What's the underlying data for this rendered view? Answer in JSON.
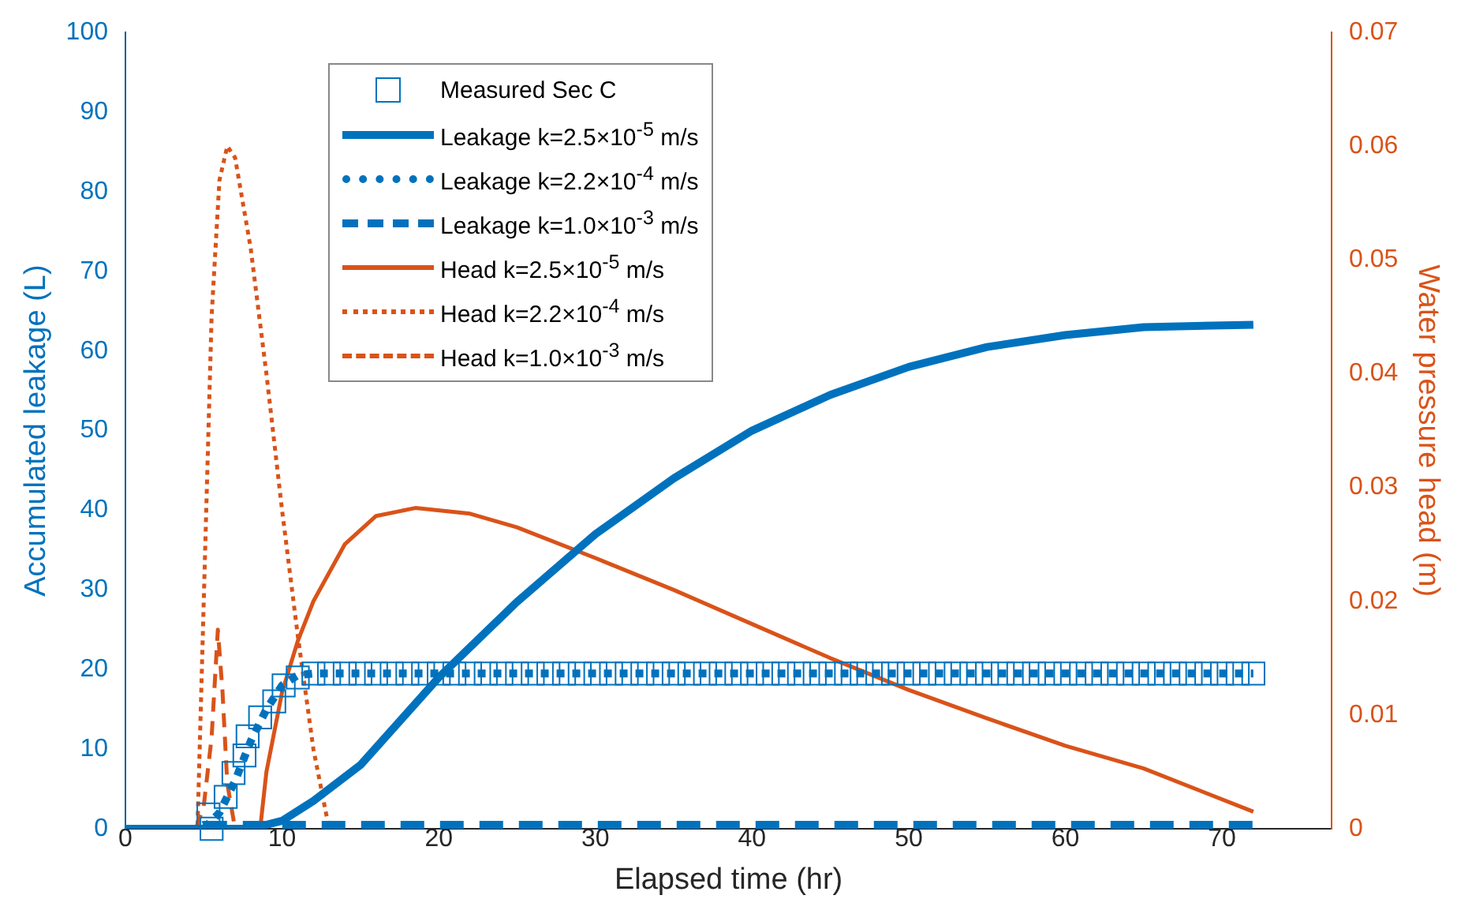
{
  "chart_data": {
    "type": "line",
    "xlabel": "Elapsed time (hr)",
    "ylabel": "Accumulated leakage (L)",
    "y2label": "Water pressure head (m)",
    "xlim": [
      0,
      77
    ],
    "xticks": [
      0,
      10,
      20,
      30,
      40,
      50,
      60,
      70
    ],
    "ylim": [
      0,
      100
    ],
    "yticks": [
      0,
      10,
      20,
      30,
      40,
      50,
      60,
      70,
      80,
      90,
      100
    ],
    "y2lim": [
      0,
      0.07
    ],
    "y2ticks": [
      0,
      0.01,
      0.02,
      0.03,
      0.04,
      0.05,
      0.06,
      0.07
    ],
    "grid": false,
    "legend": "top left",
    "series": [
      {
        "name": "Measured Sec C",
        "type": "scatter",
        "marker": "square",
        "color": "#0072bd",
        "x": [
          5.5,
          5.3,
          6.4,
          6.9,
          7.6,
          7.8,
          8.6,
          9.5,
          10.1,
          11,
          12,
          13,
          14,
          15,
          16,
          17,
          18,
          19,
          20,
          21,
          22,
          23,
          24,
          25,
          26,
          27,
          28,
          29,
          30,
          31,
          32,
          33,
          34,
          35,
          36,
          37,
          38,
          39,
          40,
          41,
          42,
          43,
          44,
          45,
          46,
          47,
          48,
          49,
          50,
          51,
          52,
          53,
          54,
          55,
          56,
          57,
          58,
          59,
          60,
          61,
          62,
          63,
          64,
          65,
          66,
          67,
          68,
          69,
          70,
          71,
          72
        ],
        "values": [
          0,
          1.8,
          4,
          7,
          9.2,
          11.6,
          14,
          16,
          18,
          19,
          19.5,
          19.5,
          19.5,
          19.5,
          19.5,
          19.5,
          19.5,
          19.5,
          19.5,
          19.5,
          19.5,
          19.5,
          19.5,
          19.5,
          19.5,
          19.5,
          19.5,
          19.5,
          19.5,
          19.5,
          19.5,
          19.5,
          19.5,
          19.5,
          19.5,
          19.5,
          19.5,
          19.5,
          19.5,
          19.5,
          19.5,
          19.5,
          19.5,
          19.5,
          19.5,
          19.5,
          19.5,
          19.5,
          19.5,
          19.5,
          19.5,
          19.5,
          19.5,
          19.5,
          19.5,
          19.5,
          19.5,
          19.5,
          19.5,
          19.5,
          19.5,
          19.5,
          19.5,
          19.5,
          19.5,
          19.5,
          19.5,
          19.5,
          19.5,
          19.5,
          19.5
        ]
      },
      {
        "name": "Leakage k=2.5×10$^{-5}$ m/s",
        "line_style": "solid",
        "color": "#0072bd",
        "x": [
          0,
          8,
          10,
          12,
          15,
          20,
          25,
          30,
          35,
          40,
          45,
          50,
          55,
          60,
          65,
          72
        ],
        "values": [
          0,
          0,
          1,
          3.5,
          8,
          19,
          28.5,
          37,
          44,
          50,
          54.5,
          58,
          60.5,
          62,
          63,
          63.3
        ]
      },
      {
        "name": "Leakage k=2.2×10$^{-4}$ m/s",
        "line_style": "dotted",
        "color": "#0072bd",
        "x": [
          0,
          5,
          6,
          7,
          8,
          9,
          10,
          11,
          12,
          72
        ],
        "values": [
          0,
          0,
          2,
          6,
          11,
          15,
          18,
          19.3,
          19.5,
          19.5
        ]
      },
      {
        "name": "Leakage k=1.0×10$^{-3}$ m/s",
        "line_style": "dashed",
        "color": "#0072bd",
        "x": [
          0,
          4.5,
          5,
          72
        ],
        "values": [
          0,
          0,
          0.5,
          0.5
        ]
      },
      {
        "name": "Head k=2.5×10$^{-5}$ m/s",
        "line_style": "solid",
        "color": "#d95319",
        "axis": "y2",
        "x": [
          0,
          8.6,
          9,
          10,
          11,
          12,
          14,
          16,
          18.5,
          22,
          25,
          30,
          35,
          40,
          45,
          50,
          55,
          60,
          65,
          72
        ],
        "values": [
          0,
          0,
          0.005,
          0.012,
          0.0165,
          0.02,
          0.025,
          0.0275,
          0.0282,
          0.0277,
          0.0265,
          0.0238,
          0.021,
          0.018,
          0.015,
          0.0122,
          0.0097,
          0.0073,
          0.0053,
          0.0015
        ]
      },
      {
        "name": "Head k=2.2×10$^{-4}$ m/s",
        "line_style": "dotted",
        "color": "#d95319",
        "axis": "y2",
        "x": [
          0,
          4.6,
          5,
          5.5,
          6,
          6.5,
          7,
          8,
          9,
          10,
          11,
          12,
          13
        ],
        "values": [
          0,
          0,
          0.02,
          0.045,
          0.057,
          0.06,
          0.059,
          0.051,
          0.04,
          0.028,
          0.017,
          0.007,
          0
        ]
      },
      {
        "name": "Head k=1.0×10$^{-3}$ m/s",
        "line_style": "dashed",
        "color": "#d95319",
        "axis": "y2",
        "x": [
          0,
          4.5,
          5,
          5.5,
          5.9,
          6.2,
          6.5,
          7
        ],
        "values": [
          0,
          0,
          0.002,
          0.008,
          0.0175,
          0.012,
          0.004,
          0
        ]
      }
    ]
  }
}
